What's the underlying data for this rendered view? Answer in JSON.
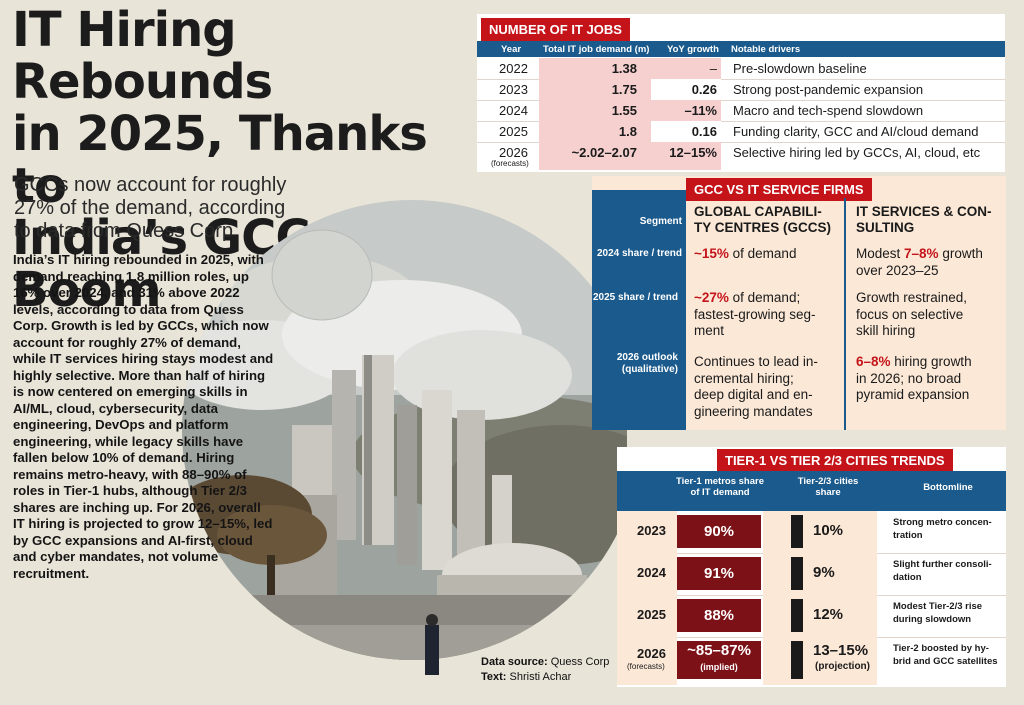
{
  "headline": "IT Hiring Rebounds\nin 2025, Thanks to\nIndia’s GCC Boom",
  "subhead": "GCCs now account for roughly\n27% of the demand, according\nto data from Quess Corp",
  "body": "India’s IT hiring rebounded in 2025, with demand reaching 1.8 million roles, up 16% over 2024, and 31% above 2022 levels, according to data from Quess Corp. Growth is led by GCCs, which now account for roughly 27% of demand, while IT services hiring stays modest and highly selective. More than half of hiring is now centered on emerging skills in AI/ML, cloud, cybersecurity, data engineering, DevOps and platform engineering, while legacy skills have fallen below 10% of demand. Hiring remains metro-heavy, with 88–90% of roles in Tier-1 hubs, although Tier 2/3 shares are inching up. For 2026, overall IT hiring is projected to grow 12–15%, led by GCC expansions and AI-first, cloud and cyber mandates, not volume recruitment.",
  "source": {
    "label1": "Data source:",
    "value1": "Quess Corp",
    "label2": "Text:",
    "value2": "Shristi Achar"
  },
  "jobs": {
    "title": "NUMBER OF IT JOBS",
    "headers": [
      "Year",
      "Total IT job demand (m)",
      "YoY growth",
      "Notable drivers"
    ],
    "rows": [
      {
        "year": "2022",
        "demand": "1.38",
        "growth": "–",
        "driver": "Pre-slowdown baseline"
      },
      {
        "year": "2023",
        "demand": "1.75",
        "growth": "0.26",
        "driver": "Strong post-pandemic expansion"
      },
      {
        "year": "2024",
        "demand": "1.55",
        "growth": "–11%",
        "driver": "Macro and tech-spend slowdown"
      },
      {
        "year": "2025",
        "demand": "1.8",
        "growth": "0.16",
        "driver": "Funding clarity, GCC and AI/cloud demand"
      },
      {
        "year": "2026",
        "note": "(forecasts)",
        "demand": "~2.02–2.07",
        "growth": "12–15%",
        "driver": "Selective hiring led by GCCs, AI, cloud, etc"
      }
    ]
  },
  "gcc": {
    "title": "GCC VS IT SERVICE FIRMS",
    "segment": "Segment",
    "col1": "GLOBAL CAPABILI-\nTY CENTRES (GCCS)",
    "col2": "IT SERVICES & CON-\nSULTING",
    "rows": [
      {
        "label": "2024 share / trend",
        "c1_hi": "~15%",
        "c1": " of demand",
        "c2_pre": "Modest ",
        "c2_hi": "7–8%",
        "c2": " growth\nover 2023–25"
      },
      {
        "label": "2025 share / trend",
        "c1_hi": "~27%",
        "c1": " of demand;\nfastest-growing seg-\nment",
        "c2_pre": "",
        "c2_hi": "",
        "c2": "Growth restrained,\nfocus on selective\nskill hiring"
      },
      {
        "label": "2026 outlook (qualitative)",
        "c1_hi": "",
        "c1": "Continues to lead in-\ncremental hiring;\ndeep digital and en-\ngineering mandates",
        "c2_pre": "",
        "c2_hi": "6–8%",
        "c2": " hiring growth\nin 2026; no broad\npyramid expansion"
      }
    ]
  },
  "tier": {
    "title": "TIER-1 VS TIER 2/3 CITIES TRENDS",
    "headers": [
      "Tier-1 metros share of IT demand",
      "Tier-2/3 cities share",
      "Bottomline"
    ],
    "rows": [
      {
        "year": "2023",
        "t1": "90%",
        "t2": "10%",
        "note": "Strong metro concen-\ntration"
      },
      {
        "year": "2024",
        "t1": "91%",
        "t2": "9%",
        "note": "Slight further consoli-\ndation"
      },
      {
        "year": "2025",
        "t1": "88%",
        "t2": "12%",
        "note": "Modest Tier-2/3 rise\nduring slowdown"
      },
      {
        "year": "2026",
        "yearnote": "(forecasts)",
        "t1": "~85–87%",
        "t1note": "(implied)",
        "t2": "13–15%",
        "t2note": "(projection)",
        "note": "Tier-2 boosted by hy-\nbrid and GCC satellites"
      }
    ]
  },
  "colors": {
    "accent_red": "#c4141a",
    "header_blue": "#1b5a8c",
    "dark_red": "#7d1118",
    "peach": "#fbe8d7",
    "pink": "#f5d0cf"
  }
}
